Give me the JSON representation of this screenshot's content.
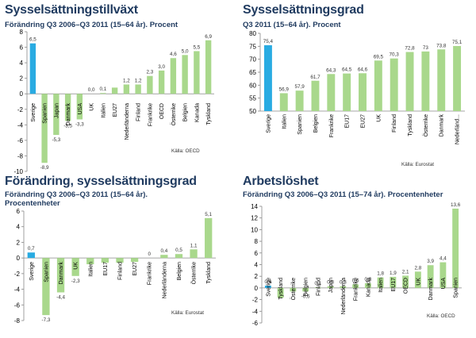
{
  "chart_data": [
    {
      "type": "bar",
      "title": "Sysselsättningstillväxt",
      "subtitle": [
        "Förändring Q3 2006–Q3 2011 (15–64 år). Procent"
      ],
      "source": "Källa: OECD",
      "categories": [
        "Sverige",
        "Spanien",
        "Japan",
        "Danmark",
        "USA",
        "UK",
        "Italien",
        "EU27",
        "Nederländerna",
        "Finland",
        "Frankrike",
        "OECD",
        "Österrike",
        "Belgien",
        "Kanada",
        "Tyskland"
      ],
      "values": [
        6.5,
        -8.9,
        -5.3,
        -3.5,
        -3.3,
        0.0,
        0.1,
        0.8,
        1.2,
        1.2,
        2.3,
        3.0,
        4.6,
        5.0,
        5.5,
        6.9
      ],
      "value_labels": [
        "6,5",
        "-8,9",
        "-5,3",
        "-3,5",
        "-3,3",
        "0,0",
        "0,1",
        "",
        "1,2",
        "1,2",
        "2,3",
        "3,0",
        "4,6",
        "5,0",
        "5,5",
        "6,9"
      ],
      "yticks": [
        "8",
        "6",
        "4",
        "2",
        "0",
        "-2",
        "-4",
        "-6",
        "-8",
        "-10"
      ],
      "ylim": [
        -10,
        8
      ],
      "highlight": "Sverige",
      "colors": {
        "highlight": "#29abe2",
        "bar": "#a9d88c",
        "axis": "#888888"
      }
    },
    {
      "type": "bar",
      "title": "Sysselsättningsgrad",
      "subtitle": [
        "Q3 2011 (15–64 år). Procent"
      ],
      "source": "Källa: Eurostat",
      "categories": [
        "Sverige",
        "Italien",
        "Spanien",
        "Belgien",
        "Frankrike",
        "EU17",
        "EU27",
        "UK",
        "Finland",
        "Tyskland",
        "Österrike",
        "Danmark",
        "Nederländ..."
      ],
      "values": [
        75.4,
        56.9,
        57.9,
        61.7,
        64.3,
        64.5,
        64.6,
        69.5,
        70.3,
        72.8,
        73.0,
        73.8,
        75.1
      ],
      "value_labels": [
        "75,4",
        "56,9",
        "57,9",
        "61,7",
        "64,3",
        "64,5",
        "64,6",
        "69,5",
        "70,3",
        "72,8",
        "73",
        "73,8",
        "75,1"
      ],
      "yticks": [
        "80",
        "75",
        "70",
        "65",
        "60",
        "55",
        "50"
      ],
      "ylim": [
        50,
        80
      ],
      "highlight": "Sverige",
      "colors": {
        "highlight": "#29abe2",
        "bar": "#a9d88c",
        "axis": "#888888"
      }
    },
    {
      "type": "bar",
      "title": "Förändring, sysselsättningsgrad",
      "subtitle": [
        "Förändring Q3 2006–Q3 2011 (15–64 år).",
        "Procentenheter"
      ],
      "source": "Källa: Eurostat",
      "categories": [
        "Sverige",
        "Spanien",
        "Danmark",
        "UK",
        "Italien",
        "EU17",
        "Finland",
        "EU27",
        "Frankrike",
        "Nederländerna",
        "Belgien",
        "Österrike",
        "Tyskland"
      ],
      "values": [
        0.7,
        -7.3,
        -4.4,
        -2.3,
        -0.8,
        -0.6,
        -0.6,
        -0.5,
        0.0,
        0.4,
        0.5,
        1.1,
        5.1
      ],
      "value_labels": [
        "0,7",
        "-7,3",
        "-4,4",
        "-2,3",
        "",
        "",
        "",
        "",
        "0",
        "0,4",
        "0,5",
        "1,1",
        "5,1"
      ],
      "yticks": [
        "6",
        "4",
        "2",
        "0",
        "-2",
        "-4",
        "-6",
        "-8"
      ],
      "ylim": [
        -8,
        6
      ],
      "highlight": "Sverige",
      "colors": {
        "highlight": "#29abe2",
        "bar": "#a9d88c",
        "axis": "#888888"
      }
    },
    {
      "type": "bar",
      "title": "Arbetslöshet",
      "subtitle": [
        "Förändring Q3 2006–Q3 2011 (15–74 år). Procentenheter"
      ],
      "source": "Källa: OECD",
      "categories": [
        "Sverige",
        "Tyskland",
        "Österrike",
        "Belgien",
        "Finland",
        "Japan",
        "Nederländerna",
        "Frankrike",
        "Kanada",
        "Italien",
        "EU17",
        "OECD",
        "UK",
        "Danmark",
        "USA",
        "Spanien"
      ],
      "values": [
        0.4,
        -1.7,
        -0.6,
        -0.6,
        0.1,
        0.3,
        0.3,
        0.6,
        0.8,
        1.8,
        1.9,
        2.1,
        2.8,
        3.9,
        4.4,
        13.6
      ],
      "value_labels": [
        "0,4",
        "",
        "",
        "-0,6",
        "0,1",
        "0,3",
        "0,3",
        "0,6",
        "0,8",
        "1,8",
        "1,9",
        "2,1",
        "2,8",
        "3,9",
        "4,4",
        "13,6"
      ],
      "yticks": [
        "14",
        "12",
        "10",
        "8",
        "6",
        "4",
        "2",
        "0",
        "-2",
        "-4",
        "-6"
      ],
      "ylim": [
        -6,
        14
      ],
      "highlight": "Sverige",
      "colors": {
        "highlight": "#29abe2",
        "bar": "#a9d88c",
        "axis": "#888888"
      }
    }
  ]
}
